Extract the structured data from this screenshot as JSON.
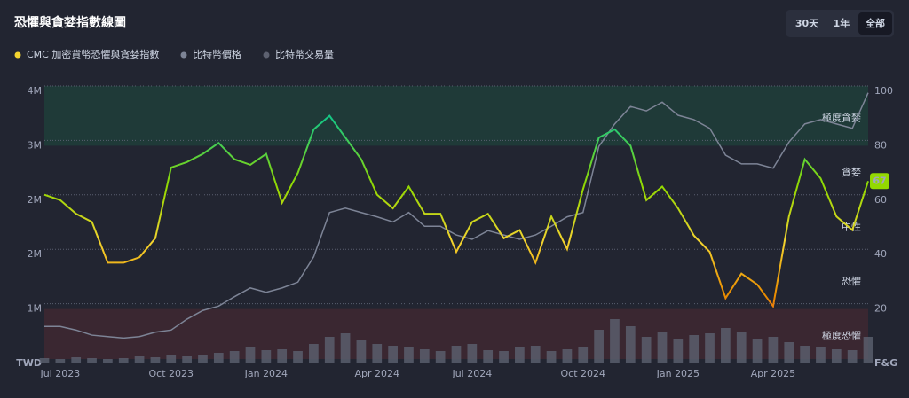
{
  "header": {
    "title": "恐懼與貪婪指數線圖",
    "ranges": [
      "30天",
      "1年",
      "全部"
    ],
    "active_range": 2
  },
  "chart_data": {
    "type": "line",
    "categories": [
      null,
      "Jul 2023",
      null,
      null,
      null,
      null,
      null,
      null,
      "Oct 2023",
      null,
      null,
      null,
      null,
      null,
      "Jan 2024",
      null,
      null,
      null,
      null,
      null,
      null,
      "Apr 2024",
      null,
      null,
      null,
      null,
      null,
      "Jul 2024",
      null,
      null,
      null,
      null,
      null,
      null,
      "Oct 2024",
      null,
      null,
      null,
      null,
      null,
      "Jan 2025",
      null,
      null,
      null,
      null,
      null,
      "Apr 2025",
      null,
      null,
      null,
      null,
      null,
      null
    ],
    "series": [
      {
        "name": "CMC 加密貨幣恐懼與貪婪指數",
        "color": "#f3d42f",
        "axis": "y2",
        "colors": [
          {
            "value": 0,
            "color": "#ea3943"
          },
          {
            "value": 25,
            "color": "#ea8c00"
          },
          {
            "value": 45,
            "color": "#f3d42f"
          },
          {
            "value": 65,
            "color": "#93d900"
          },
          {
            "value": 90,
            "color": "#16c784"
          }
        ],
        "values": [
          62,
          60,
          55,
          52,
          37,
          37,
          39,
          46,
          72,
          74,
          77,
          81,
          75,
          73,
          77,
          59,
          70,
          86,
          91,
          83,
          75,
          62,
          57,
          65,
          55,
          55,
          41,
          52,
          55,
          46,
          49,
          37,
          54,
          42,
          64,
          83,
          86,
          80,
          60,
          65,
          57,
          47,
          41,
          24,
          33,
          29,
          21,
          54,
          75,
          68,
          54,
          49,
          67
        ]
      },
      {
        "name": "比特幣價格",
        "color": "#7d8496",
        "axis": "y",
        "values": [
          510000,
          510000,
          460000,
          390000,
          370000,
          350000,
          370000,
          430000,
          460000,
          610000,
          730000,
          790000,
          920000,
          1040000,
          980000,
          1040000,
          1120000,
          1470000,
          2080000,
          2140000,
          2080000,
          2020000,
          1950000,
          2080000,
          1890000,
          1890000,
          1770000,
          1710000,
          1830000,
          1770000,
          1710000,
          1770000,
          1890000,
          2020000,
          2080000,
          2990000,
          3300000,
          3540000,
          3480000,
          3600000,
          3420000,
          3360000,
          3240000,
          2870000,
          2750000,
          2750000,
          2690000,
          3050000,
          3300000,
          3360000,
          3300000,
          3240000,
          3730000
        ]
      },
      {
        "name": "比特幣交易量",
        "color": "#5d6170",
        "axis": "volume",
        "values": [
          6,
          5,
          7,
          6,
          5,
          6,
          8,
          7,
          9,
          8,
          10,
          12,
          14,
          18,
          15,
          16,
          14,
          22,
          30,
          34,
          26,
          22,
          20,
          18,
          16,
          14,
          20,
          22,
          15,
          14,
          18,
          20,
          14,
          16,
          18,
          38,
          50,
          42,
          30,
          36,
          28,
          32,
          34,
          40,
          35,
          28,
          30,
          24,
          20,
          18,
          16,
          15,
          30
        ]
      }
    ],
    "ylim": [
      0,
      3750000
    ],
    "yticks": [
      {
        "value": 750000,
        "label": "1M"
      },
      {
        "value": 1500000,
        "label": "2M"
      },
      {
        "value": 2250000,
        "label": "2M"
      },
      {
        "value": 3000000,
        "label": "3M"
      },
      {
        "value": 3750000,
        "label": "4M"
      }
    ],
    "y_label": "TWD",
    "y2lim": [
      0,
      100
    ],
    "y2ticks": [
      20,
      40,
      60,
      80,
      100
    ],
    "y2_label": "F&G",
    "volume_lim": [
      0,
      100
    ],
    "grid": true,
    "zones": [
      {
        "label": "極度恐懼",
        "from": 0,
        "to": 20,
        "color": "#3a2731"
      },
      {
        "label": "恐懼",
        "from": 20,
        "to": 40
      },
      {
        "label": "中性",
        "from": 40,
        "to": 60
      },
      {
        "label": "貪婪",
        "from": 60,
        "to": 80
      },
      {
        "label": "極度貪婪",
        "from": 80,
        "to": 100,
        "color": "#1f3a38"
      }
    ]
  }
}
